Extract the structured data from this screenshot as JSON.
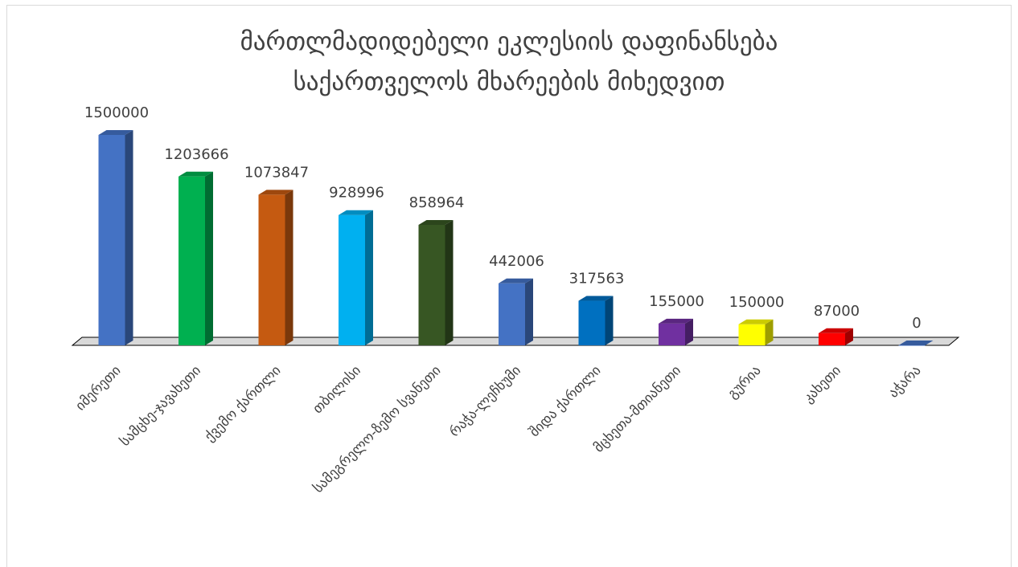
{
  "chart_data": {
    "type": "bar",
    "title": [
      "მართლმადიდებელი ეკლესიის დაფინანსება",
      "საქართველოს მხარეების მიხედვით"
    ],
    "categories": [
      "იმერეთი",
      "სამცხე-ჯავახეთი",
      "ქვემო ქართლი",
      "თბილისი",
      "სამეგრელო-ზემო სვანეთი",
      "რაჭა-ლეჩხუმი",
      "შიდა ქართლი",
      "მცხეთა-მთიანეთი",
      "გურია",
      "კახეთი",
      "აჭარა"
    ],
    "values": [
      1500000,
      1203666,
      1073847,
      928996,
      858964,
      442006,
      317563,
      155000,
      150000,
      87000,
      0
    ],
    "value_labels": [
      "1500000",
      "1203666",
      "1073847",
      "928996",
      "858964",
      "442006",
      "317563",
      "155000",
      "150000",
      "87000",
      "0"
    ],
    "colors": [
      "#4472C4",
      "#00B050",
      "#C55A11",
      "#00B0F0",
      "#375623",
      "#4472C4",
      "#0070C0",
      "#7030A0",
      "#FFFF00",
      "#FF0000",
      "#4472C4"
    ],
    "ylim": [
      0,
      1500000
    ],
    "legend": "none",
    "grid": false
  }
}
